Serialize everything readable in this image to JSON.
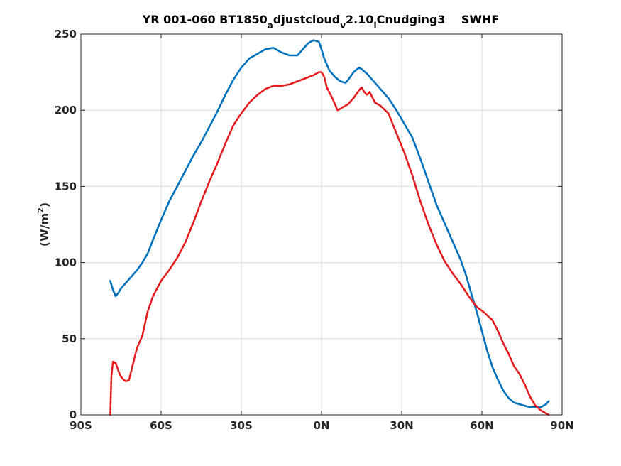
{
  "chart_data": {
    "type": "line",
    "title": {
      "pre": "YR 001-060 BT1850",
      "sub1": "a",
      "mid1": "djustcloud",
      "sub2": "v",
      "mid2": "2.10",
      "sub3": "l",
      "post": "Cnudging3    SWHF"
    },
    "ylabel": {
      "text": "(W/m",
      "sup": "2",
      "close": ")"
    },
    "xlabel": "",
    "xlim": [
      -90,
      90
    ],
    "ylim": [
      0,
      250
    ],
    "xticks": [
      -90,
      -60,
      -30,
      0,
      30,
      60,
      90
    ],
    "xtick_labels": [
      "90S",
      "60S",
      "30S",
      "0N",
      "30N",
      "60N",
      "90N"
    ],
    "yticks": [
      0,
      50,
      100,
      150,
      200,
      250
    ],
    "ytick_labels": [
      "0",
      "50",
      "100",
      "150",
      "200",
      "250"
    ],
    "grid": true,
    "legend": "none",
    "series": [
      {
        "color": "#0072BD",
        "style": "solid",
        "x": [
          -79,
          -78,
          -77,
          -76,
          -75,
          -73,
          -71,
          -69,
          -67,
          -65,
          -63,
          -60,
          -57,
          -54,
          -51,
          -48,
          -45,
          -42,
          -39,
          -36,
          -33,
          -30,
          -27,
          -24,
          -21,
          -18,
          -15,
          -12,
          -9,
          -7,
          -5,
          -3,
          -1,
          0,
          1,
          3,
          5,
          7,
          9,
          10,
          12,
          14,
          15,
          17,
          19,
          22,
          25,
          28,
          31,
          34,
          37,
          40,
          43,
          46,
          49,
          52,
          54,
          56,
          58,
          60,
          62,
          64,
          66,
          68,
          70,
          72,
          74,
          76,
          78,
          80,
          82,
          84,
          85
        ],
        "values": [
          88,
          82,
          78,
          80,
          83,
          87,
          91,
          95,
          100,
          106,
          115,
          128,
          140,
          150,
          160,
          170,
          179,
          189,
          199,
          210,
          220,
          228,
          234,
          237,
          240,
          241,
          238,
          236,
          236,
          240,
          244,
          246,
          245,
          240,
          234,
          226,
          222,
          219,
          218,
          220,
          225,
          228,
          227,
          224,
          220,
          214,
          208,
          200,
          191,
          182,
          168,
          153,
          138,
          126,
          114,
          102,
          92,
          80,
          68,
          55,
          42,
          31,
          23,
          16,
          11,
          8,
          7,
          6,
          5,
          5,
          5,
          7,
          9
        ]
      },
      {
        "color": "#E41A1C",
        "style": "dashed",
        "x": [
          -79,
          -78.6,
          -78,
          -77,
          -76,
          -75,
          -74,
          -73,
          -72,
          -71,
          -70,
          -69,
          -67,
          -65,
          -63,
          -60,
          -57,
          -54,
          -51,
          -48,
          -45,
          -42,
          -39,
          -36,
          -33,
          -30,
          -27,
          -24,
          -21,
          -18,
          -15,
          -12,
          -9,
          -6,
          -3,
          -1,
          0,
          1,
          2,
          4,
          6,
          8,
          10,
          12,
          14,
          15,
          16,
          17,
          18,
          20,
          22,
          25,
          28,
          31,
          34,
          37,
          40,
          43,
          46,
          49,
          52,
          55,
          58,
          61,
          64,
          66,
          68,
          70,
          72,
          74,
          76,
          78,
          80,
          82,
          84,
          85
        ],
        "values": [
          0,
          25,
          35,
          34,
          29,
          25,
          23,
          22,
          23,
          30,
          37,
          44,
          52,
          68,
          78,
          88,
          95,
          103,
          113,
          126,
          140,
          153,
          165,
          178,
          190,
          198,
          205,
          210,
          214,
          216,
          216,
          217,
          219,
          221,
          223,
          225,
          225,
          222,
          215,
          208,
          200,
          202,
          204,
          208,
          213,
          215,
          212,
          210,
          212,
          205,
          203,
          198,
          185,
          172,
          157,
          140,
          125,
          112,
          101,
          93,
          86,
          78,
          71,
          67,
          62,
          55,
          47,
          40,
          32,
          27,
          20,
          12,
          6,
          3,
          1,
          0
        ]
      }
    ]
  }
}
